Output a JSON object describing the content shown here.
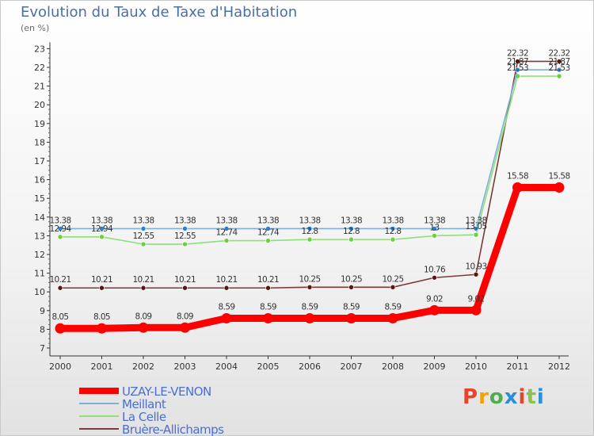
{
  "header": {
    "title": "Evolution du Taux de Taxe d'Habitation",
    "subtitle": "(en %)"
  },
  "logo": {
    "letters": [
      "P",
      "r",
      "o",
      "x",
      "i",
      "t",
      "i"
    ],
    "colors": [
      "#e8452c",
      "#f2a10c",
      "#4caf50",
      "#2a8fd8",
      "#e8452c",
      "#8bc34a",
      "#2a8fd8"
    ]
  },
  "chart_data": {
    "type": "line",
    "title": "Evolution du Taux de Taxe d'Habitation",
    "subtitle": "(en %)",
    "xlabel": "",
    "ylabel": "",
    "categories": [
      "2000",
      "2001",
      "2002",
      "2003",
      "2004",
      "2005",
      "2006",
      "2007",
      "2008",
      "2009",
      "2010",
      "2011",
      "2012"
    ],
    "ylim": [
      7,
      23
    ],
    "yticks": [
      "7",
      "8",
      "9",
      "10",
      "11",
      "12",
      "13",
      "14",
      "15",
      "16",
      "17",
      "18",
      "19",
      "20",
      "21",
      "22",
      "23"
    ],
    "grid": false,
    "legend_position": "bottom-left",
    "series": [
      {
        "name": "UZAY-LE-VENON",
        "color": "#ff0000",
        "values": [
          8.05,
          8.05,
          8.09,
          8.09,
          8.59,
          8.59,
          8.59,
          8.59,
          8.59,
          9.02,
          9.02,
          15.58,
          15.58
        ],
        "labels": [
          "8.05",
          "8.05",
          "8.09",
          "8.09",
          "8.59",
          "8.59",
          "8.59",
          "8.59",
          "8.59",
          "9.02",
          "9.02",
          "15.58",
          "15.58"
        ]
      },
      {
        "name": "Meillant",
        "color": "#7fb0d9",
        "marker": "#2f7fcf",
        "values": [
          13.38,
          13.38,
          13.38,
          13.38,
          13.38,
          13.38,
          13.38,
          13.38,
          13.38,
          13.38,
          13.38,
          21.87,
          21.87
        ],
        "labels": [
          "13.38",
          "13.38",
          "13.38",
          "13.38",
          "13.38",
          "13.38",
          "13.38",
          "13.38",
          "13.38",
          "13.38",
          "13.38",
          "21.87",
          "21.87"
        ]
      },
      {
        "name": "La Celle",
        "color": "#8fe07a",
        "marker": "#6ccf3d",
        "values": [
          12.94,
          12.94,
          12.55,
          12.55,
          12.74,
          12.74,
          12.8,
          12.8,
          12.8,
          13,
          13.05,
          21.53,
          21.53
        ],
        "labels": [
          "12.94",
          "12.94",
          "12.55",
          "12.55",
          "12.74",
          "12.74",
          "12.8",
          "12.8",
          "12.8",
          "13",
          "13.05",
          "21.53",
          "21.53"
        ]
      },
      {
        "name": "Bruère-Allichamps",
        "color": "#7a3a3a",
        "marker": "#5a1414",
        "values": [
          10.21,
          10.21,
          10.21,
          10.21,
          10.21,
          10.21,
          10.25,
          10.25,
          10.25,
          10.76,
          10.93,
          22.32,
          22.32
        ],
        "labels": [
          "10.21",
          "10.21",
          "10.21",
          "10.21",
          "10.21",
          "10.21",
          "10.25",
          "10.25",
          "10.25",
          "10.76",
          "10.93",
          "22.32",
          "22.32"
        ]
      }
    ]
  }
}
